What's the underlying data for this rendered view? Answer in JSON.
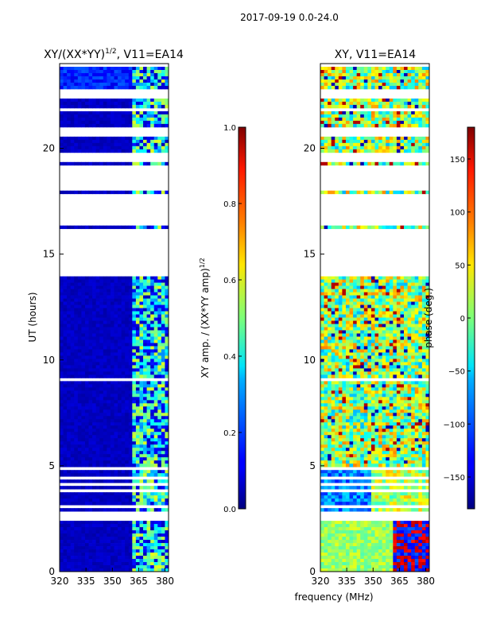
{
  "figure_title": "2017-09-19 0.0-24.0",
  "chart_data": [
    {
      "type": "heatmap",
      "title": "XY/(XX*YY)¹ᐟ², V11=EA14",
      "title_plain": "XY/(XX*YY)^(1/2), V11=EA14",
      "xlabel": "",
      "ylabel": "UT (hours)",
      "xlim": [
        320,
        382
      ],
      "ylim": [
        0,
        24
      ],
      "xticks": [
        320,
        335,
        350,
        365,
        380
      ],
      "yticks": [
        0,
        5,
        10,
        15,
        20
      ],
      "colormap": "jet",
      "colorbar": {
        "label": "XY amp. / (XX*YY amp)^(1/2)",
        "range": [
          0.0,
          1.0
        ],
        "ticks": [
          0.0,
          0.2,
          0.4,
          0.6,
          0.8,
          1.0
        ],
        "tick_labels": [
          "0.0",
          "0.2",
          "0.4",
          "0.6",
          "0.8",
          "1.0"
        ]
      },
      "data_gaps_hours": [
        [
          2.4,
          2.8
        ],
        [
          13.9,
          16.2
        ],
        [
          16.4,
          17.8
        ],
        [
          18.0,
          19.2
        ],
        [
          19.3,
          19.8
        ],
        [
          20.5,
          21.0
        ],
        [
          22.3,
          22.8
        ]
      ],
      "description_values": "background amplitude ~0.05; bright bands 0.4-0.6 near 362-380 MHz"
    },
    {
      "type": "heatmap",
      "title": "XY, V11=EA14",
      "xlabel": "frequency (MHz)",
      "ylabel": "",
      "xlim": [
        320,
        382
      ],
      "ylim": [
        0,
        24
      ],
      "xticks": [
        320,
        335,
        350,
        365,
        380
      ],
      "yticks": [
        0,
        5,
        10,
        15,
        20
      ],
      "colormap": "jet",
      "colorbar": {
        "label": "phase (deg.)",
        "range": [
          -180,
          180
        ],
        "ticks": [
          -150,
          -100,
          -50,
          0,
          50,
          100,
          150
        ],
        "tick_labels": [
          "−150",
          "−100",
          "−50",
          "0",
          "50",
          "100",
          "150"
        ]
      },
      "data_gaps_hours": [
        [
          2.4,
          2.8
        ],
        [
          13.9,
          16.2
        ],
        [
          16.4,
          17.8
        ],
        [
          18.0,
          19.2
        ],
        [
          19.3,
          19.8
        ],
        [
          20.5,
          21.0
        ],
        [
          22.3,
          22.8
        ]
      ]
    }
  ]
}
